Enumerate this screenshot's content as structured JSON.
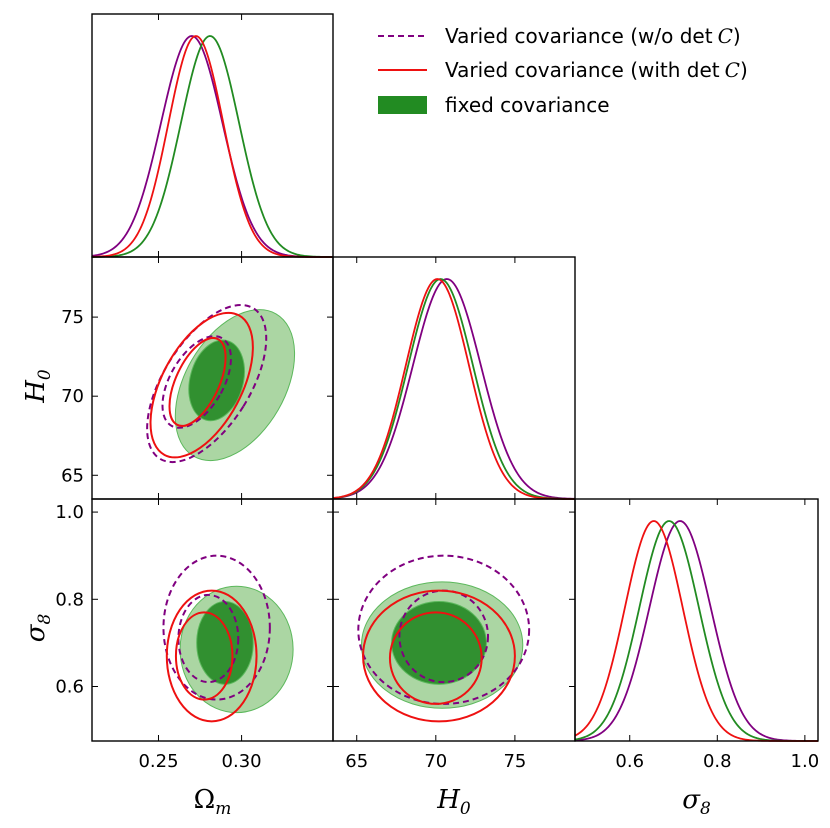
{
  "colors": {
    "fixed": "#228B22",
    "fixed_fill_outer": "#9ccf93",
    "fixed_fill_inner": "#2a8c2a",
    "fixed_stroke": "#5cb85c",
    "varied_nodet": "#800080",
    "varied_det": "#ee1111"
  },
  "legend": {
    "entries": [
      {
        "id": "varied_nodet",
        "label_prefix": "Varied covariance (w/o det",
        "label_italic": "C",
        "label_suffix": ")",
        "style": "dashed"
      },
      {
        "id": "varied_det",
        "label_prefix": "Varied covariance (with det",
        "label_italic": "C",
        "label_suffix": ")",
        "style": "solid"
      },
      {
        "id": "fixed",
        "label_prefix": "fixed covariance",
        "label_italic": "",
        "label_suffix": "",
        "style": "filled"
      }
    ]
  },
  "chart_data": {
    "type": "corner",
    "parameters": [
      {
        "name": "Omega_m",
        "label_main": "Ω",
        "label_sub": "m",
        "range": [
          0.21,
          0.355
        ],
        "ticks": [
          0.25,
          0.3
        ],
        "tick_labels": [
          "0.25",
          "0.30"
        ]
      },
      {
        "name": "H0",
        "label_main": "H",
        "label_sub": "0",
        "range": [
          63.5,
          78.8
        ],
        "ticks": [
          65,
          70,
          75
        ],
        "tick_labels": [
          "65",
          "70",
          "75"
        ]
      },
      {
        "name": "sigma8",
        "label_main": "σ",
        "label_sub": "8",
        "range": [
          0.475,
          1.03
        ],
        "ticks": [
          0.6,
          0.8,
          1.0
        ],
        "tick_labels": [
          "0.6",
          "0.8",
          "1.0"
        ]
      }
    ],
    "marginals": {
      "Omega_m": {
        "fixed": {
          "mean": 0.281,
          "sd": 0.0175
        },
        "varied_nodet": {
          "mean": 0.27,
          "sd": 0.0185
        },
        "varied_det": {
          "mean": 0.2725,
          "sd": 0.0165
        }
      },
      "H0": {
        "fixed": {
          "mean": 70.3,
          "sd": 2.05
        },
        "varied_nodet": {
          "mean": 70.7,
          "sd": 2.15
        },
        "varied_det": {
          "mean": 70.1,
          "sd": 2.0
        }
      },
      "sigma8": {
        "fixed": {
          "mean": 0.69,
          "sd": 0.068
        },
        "varied_nodet": {
          "mean": 0.715,
          "sd": 0.07
        },
        "varied_det": {
          "mean": 0.655,
          "sd": 0.066
        }
      }
    },
    "contours": [
      {
        "x": "Omega_m",
        "y": "H0",
        "fixed": [
          {
            "level": "95",
            "cx": 0.296,
            "cy": 70.7,
            "rx": 0.03,
            "ry": 5.2,
            "rot": 30
          },
          {
            "level": "68",
            "cx": 0.285,
            "cy": 71.0,
            "rx": 0.016,
            "ry": 2.6,
            "rot": 15
          }
        ],
        "varied_nodet": [
          {
            "level": "95",
            "cx": 0.279,
            "cy": 70.8,
            "rx": 0.026,
            "ry": 5.6,
            "rot": 32
          },
          {
            "level": "68",
            "cx": 0.273,
            "cy": 70.9,
            "rx": 0.016,
            "ry": 3.2,
            "rot": 30
          }
        ],
        "varied_det": [
          {
            "level": "95",
            "cx": 0.276,
            "cy": 70.7,
            "rx": 0.024,
            "ry": 5.0,
            "rot": 28
          },
          {
            "level": "68",
            "cx": 0.2735,
            "cy": 70.9,
            "rx": 0.013,
            "ry": 3.0,
            "rot": 25
          }
        ]
      },
      {
        "x": "Omega_m",
        "y": "sigma8",
        "fixed": [
          {
            "level": "95",
            "cx": 0.297,
            "cy": 0.685,
            "rx": 0.034,
            "ry": 0.145,
            "rot": 0
          },
          {
            "level": "68",
            "cx": 0.29,
            "cy": 0.7,
            "rx": 0.017,
            "ry": 0.095,
            "rot": 0
          }
        ],
        "varied_nodet": [
          {
            "level": "95",
            "cx": 0.285,
            "cy": 0.735,
            "rx": 0.032,
            "ry": 0.165,
            "rot": 0
          },
          {
            "level": "68",
            "cx": 0.28,
            "cy": 0.71,
            "rx": 0.018,
            "ry": 0.1,
            "rot": 0
          }
        ],
        "varied_det": [
          {
            "level": "95",
            "cx": 0.282,
            "cy": 0.67,
            "rx": 0.027,
            "ry": 0.15,
            "rot": 0
          },
          {
            "level": "68",
            "cx": 0.2775,
            "cy": 0.67,
            "rx": 0.017,
            "ry": 0.1,
            "rot": 0
          }
        ]
      },
      {
        "x": "H0",
        "y": "sigma8",
        "fixed": [
          {
            "level": "95",
            "cx": 70.4,
            "cy": 0.695,
            "rx": 5.1,
            "ry": 0.145,
            "rot": 0
          },
          {
            "level": "68",
            "cx": 70.2,
            "cy": 0.7,
            "rx": 3.0,
            "ry": 0.095,
            "rot": 0
          }
        ],
        "varied_nodet": [
          {
            "level": "95",
            "cx": 70.5,
            "cy": 0.73,
            "rx": 5.4,
            "ry": 0.17,
            "rot": 0
          },
          {
            "level": "68",
            "cx": 70.5,
            "cy": 0.715,
            "rx": 2.8,
            "ry": 0.105,
            "rot": 0
          }
        ],
        "varied_det": [
          {
            "level": "95",
            "cx": 70.2,
            "cy": 0.67,
            "rx": 4.8,
            "ry": 0.15,
            "rot": 0
          },
          {
            "level": "68",
            "cx": 70.0,
            "cy": 0.665,
            "rx": 2.9,
            "ry": 0.105,
            "rot": 0
          }
        ]
      }
    ]
  }
}
